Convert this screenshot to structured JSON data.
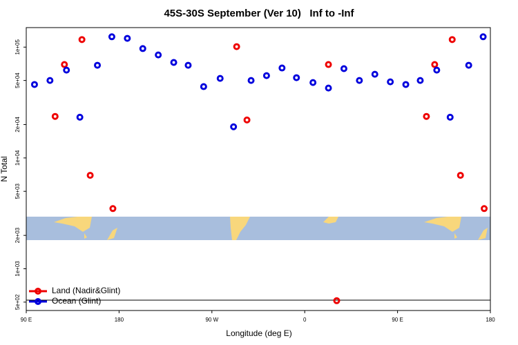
{
  "chart_data": {
    "type": "scatter",
    "title": "45S-30S September (Ver 10)   Inf to -Inf",
    "x_label": "Longitude (deg E)",
    "y_label": "N Total",
    "log_y": true,
    "xlim": [
      90,
      540
    ],
    "xticks": [
      {
        "value": 90,
        "label": "90 E"
      },
      {
        "value": 180,
        "label": "180"
      },
      {
        "value": 270,
        "label": "90 W"
      },
      {
        "value": 360,
        "label": "0"
      },
      {
        "value": 450,
        "label": "90 E"
      },
      {
        "value": 540,
        "label": "180"
      }
    ],
    "ylim": [
      420,
      150000
    ],
    "yticks": [
      {
        "value": 500,
        "label": "5e+02"
      },
      {
        "value": 1000,
        "label": "1e+03"
      },
      {
        "value": 2000,
        "label": "2e+03"
      },
      {
        "value": 5000,
        "label": "5e+03"
      },
      {
        "value": 10000,
        "label": "1e+04"
      },
      {
        "value": 20000,
        "label": "2e+04"
      },
      {
        "value": 50000,
        "label": "5e+04"
      },
      {
        "value": 100000,
        "label": "1e+05"
      }
    ],
    "legend": "bottom-left",
    "series": [
      {
        "name": "Land (Nadir&Glint)",
        "color": "#ee0000",
        "x": [
          118,
          127,
          144,
          152,
          174,
          294,
          304,
          383,
          391,
          478,
          486,
          503,
          511,
          534
        ],
        "values": [
          23700,
          69600,
          117000,
          6970,
          3490,
          101000,
          22000,
          69600,
          515,
          23700,
          69600,
          117000,
          6970,
          3490
        ]
      },
      {
        "name": "Ocean (Glint)",
        "color": "#0000dd",
        "x": [
          98,
          113,
          129,
          142,
          159,
          173,
          188,
          203,
          218,
          233,
          247,
          262,
          278,
          291,
          308,
          323,
          338,
          352,
          368,
          383,
          398,
          413,
          428,
          443,
          458,
          472,
          488,
          501,
          519,
          533
        ],
        "values": [
          46000,
          50000,
          62000,
          23300,
          68600,
          124000,
          120000,
          97000,
          85000,
          72700,
          68600,
          44000,
          52200,
          19100,
          50000,
          55300,
          64800,
          53000,
          47900,
          42700,
          63900,
          50000,
          56900,
          48600,
          46000,
          50000,
          62000,
          23300,
          68600,
          124000
        ]
      }
    ]
  }
}
